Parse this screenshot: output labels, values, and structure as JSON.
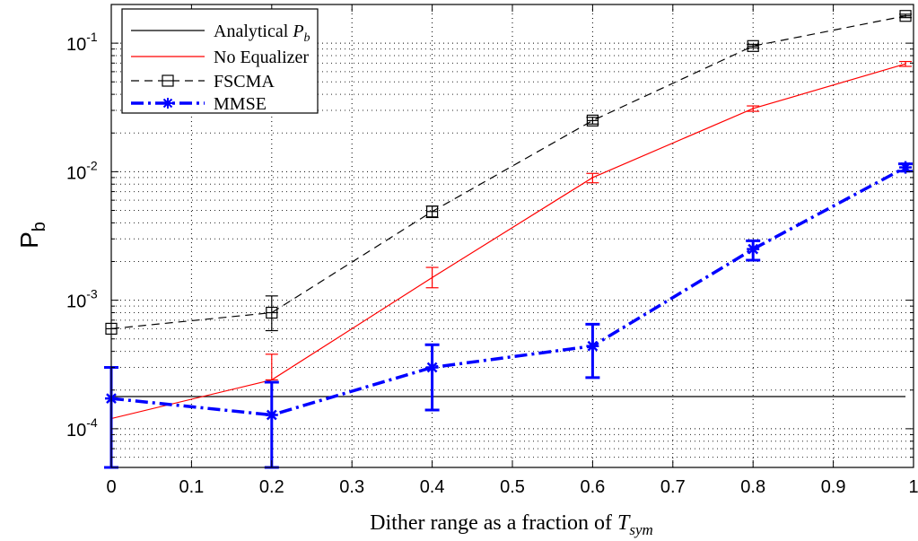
{
  "chart_data": {
    "type": "line",
    "xlabel": "Dither range as a fraction of",
    "xlabel_symbol": "T",
    "xlabel_subscript": "sym",
    "ylabel": "P",
    "ylabel_subscript": "b",
    "xlim": [
      0,
      1
    ],
    "ylim": [
      5e-05,
      0.2
    ],
    "yscale": "log",
    "grid": true,
    "legend_position": "top-left",
    "x_ticks": [
      "0",
      "0.1",
      "0.2",
      "0.3",
      "0.4",
      "0.5",
      "0.6",
      "0.7",
      "0.8",
      "0.9",
      "1"
    ],
    "y_ticks": [
      {
        "base": "10",
        "exp": "-4",
        "value": 0.0001
      },
      {
        "base": "10",
        "exp": "-3",
        "value": 0.001
      },
      {
        "base": "10",
        "exp": "-2",
        "value": 0.01
      },
      {
        "base": "10",
        "exp": "-1",
        "value": 0.1
      }
    ],
    "series": [
      {
        "name": "Analytical",
        "name_symbol": "P",
        "name_subscript": "b",
        "color": "#000000",
        "style": "solid",
        "marker": "none",
        "x": [
          0,
          0.99
        ],
        "y": [
          0.000178,
          0.000178
        ]
      },
      {
        "name": "No Equalizer",
        "color": "#ff0000",
        "style": "solid",
        "marker": "none",
        "x": [
          0,
          0.2,
          0.4,
          0.6,
          0.8,
          0.99
        ],
        "y": [
          0.00012,
          0.00024,
          0.0015,
          0.009,
          0.031,
          0.069
        ],
        "err_low": [
          0.00012,
          0.00024,
          0.00125,
          0.0082,
          0.0295,
          0.066
        ],
        "err_high": [
          0.00012,
          0.00038,
          0.0018,
          0.0097,
          0.0325,
          0.072
        ]
      },
      {
        "name": "FSCMA",
        "color": "#000000",
        "style": "dashed",
        "marker": "square",
        "x": [
          0,
          0.2,
          0.4,
          0.6,
          0.8,
          0.99
        ],
        "y": [
          0.0006,
          0.0008,
          0.0049,
          0.025,
          0.095,
          0.163
        ],
        "err_low": [
          0.0006,
          0.00058,
          0.0044,
          0.0235,
          0.092,
          0.158
        ],
        "err_high": [
          0.0006,
          0.00108,
          0.0054,
          0.0265,
          0.098,
          0.168
        ]
      },
      {
        "name": "MMSE",
        "color": "#0000ff",
        "style": "dashdot",
        "marker": "asterisk",
        "x": [
          0,
          0.2,
          0.4,
          0.6,
          0.8,
          0.99
        ],
        "y": [
          0.000172,
          0.000128,
          0.0003,
          0.00044,
          0.0025,
          0.0108
        ],
        "err_low": [
          5e-05,
          5e-05,
          0.00014,
          0.00025,
          0.00205,
          0.0101
        ],
        "err_high": [
          0.0003,
          0.00023,
          0.00045,
          0.00065,
          0.0029,
          0.0115
        ]
      }
    ]
  }
}
